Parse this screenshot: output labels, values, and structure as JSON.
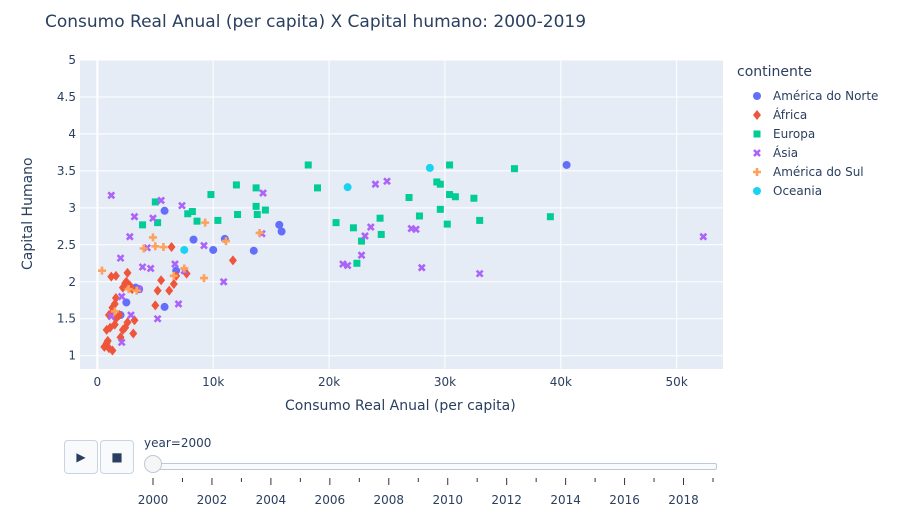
{
  "chart_data": {
    "type": "scatter",
    "title": "Consumo Real Anual (per capita) X Capital humano: 2000-2019",
    "xlabel": "Consumo Real Anual (per capita)",
    "ylabel": "Capital Humano",
    "xlim": [
      -1500,
      54000
    ],
    "ylim": [
      0.82,
      5
    ],
    "xticks": [
      0,
      10000,
      20000,
      30000,
      40000,
      50000
    ],
    "xtick_labels": [
      "0",
      "10k",
      "20k",
      "30k",
      "40k",
      "50k"
    ],
    "yticks": [
      1,
      1.5,
      2,
      2.5,
      3,
      3.5,
      4,
      4.5,
      5
    ],
    "ytick_labels": [
      "1",
      "1.5",
      "2",
      "2.5",
      "3",
      "3.5",
      "4",
      "4.5",
      "5"
    ],
    "legend_title": "continente",
    "series": [
      {
        "name": "América do Norte",
        "color": "#636efa",
        "symbol": "circle",
        "points": [
          [
            40500,
            3.58
          ],
          [
            15700,
            2.77
          ],
          [
            15900,
            2.68
          ],
          [
            13500,
            2.42
          ],
          [
            11000,
            2.58
          ],
          [
            10000,
            2.43
          ],
          [
            8300,
            2.57
          ],
          [
            5800,
            2.96
          ],
          [
            5800,
            1.66
          ],
          [
            3600,
            1.9
          ],
          [
            3300,
            1.92
          ],
          [
            2500,
            1.72
          ],
          [
            2000,
            1.55
          ],
          [
            6800,
            2.15
          ]
        ]
      },
      {
        "name": "África",
        "color": "#ef553b",
        "symbol": "diamond",
        "points": [
          [
            600,
            1.12
          ],
          [
            800,
            1.17
          ],
          [
            900,
            1.2
          ],
          [
            1000,
            1.1
          ],
          [
            1300,
            1.07
          ],
          [
            800,
            1.35
          ],
          [
            1100,
            1.38
          ],
          [
            1500,
            1.42
          ],
          [
            1600,
            1.5
          ],
          [
            1900,
            1.55
          ],
          [
            2200,
            1.35
          ],
          [
            2400,
            1.38
          ],
          [
            2600,
            1.45
          ],
          [
            1000,
            1.55
          ],
          [
            1200,
            1.57
          ],
          [
            1300,
            1.65
          ],
          [
            1500,
            1.7
          ],
          [
            1600,
            1.78
          ],
          [
            2200,
            1.92
          ],
          [
            2400,
            1.98
          ],
          [
            2500,
            2.0
          ],
          [
            3100,
            1.3
          ],
          [
            3200,
            1.48
          ],
          [
            1200,
            2.07
          ],
          [
            1600,
            2.08
          ],
          [
            2600,
            2.12
          ],
          [
            2800,
            1.95
          ],
          [
            3000,
            1.9
          ],
          [
            5000,
            1.68
          ],
          [
            5200,
            1.88
          ],
          [
            5500,
            2.02
          ],
          [
            6200,
            1.88
          ],
          [
            6600,
            1.97
          ],
          [
            6800,
            2.08
          ],
          [
            6400,
            2.47
          ],
          [
            7700,
            2.11
          ],
          [
            11700,
            2.29
          ],
          [
            2000,
            1.25
          ]
        ]
      },
      {
        "name": "Europa",
        "color": "#00cc96",
        "symbol": "square",
        "points": [
          [
            18200,
            3.58
          ],
          [
            19000,
            3.27
          ],
          [
            20600,
            2.8
          ],
          [
            22100,
            2.73
          ],
          [
            22400,
            2.25
          ],
          [
            22800,
            2.55
          ],
          [
            24400,
            2.86
          ],
          [
            24500,
            2.64
          ],
          [
            26900,
            3.14
          ],
          [
            27800,
            2.89
          ],
          [
            29300,
            3.35
          ],
          [
            29600,
            2.98
          ],
          [
            29600,
            3.32
          ],
          [
            30200,
            2.78
          ],
          [
            30400,
            3.58
          ],
          [
            30400,
            3.18
          ],
          [
            30900,
            3.15
          ],
          [
            32500,
            3.13
          ],
          [
            33000,
            2.83
          ],
          [
            36000,
            3.53
          ],
          [
            39100,
            2.88
          ],
          [
            14500,
            2.97
          ],
          [
            13700,
            3.27
          ],
          [
            13700,
            3.02
          ],
          [
            13800,
            2.91
          ],
          [
            12000,
            3.31
          ],
          [
            12100,
            2.91
          ],
          [
            10400,
            2.83
          ],
          [
            9800,
            3.18
          ],
          [
            8200,
            2.95
          ],
          [
            7800,
            2.92
          ],
          [
            8600,
            2.82
          ],
          [
            5000,
            3.08
          ],
          [
            5200,
            2.8
          ],
          [
            3900,
            2.77
          ]
        ]
      },
      {
        "name": "Ásia",
        "color": "#ab63fa",
        "symbol": "x",
        "points": [
          [
            52300,
            2.61
          ],
          [
            33000,
            2.11
          ],
          [
            28000,
            2.19
          ],
          [
            27100,
            2.72
          ],
          [
            27500,
            2.71
          ],
          [
            25000,
            3.36
          ],
          [
            24000,
            3.32
          ],
          [
            23600,
            2.74
          ],
          [
            23100,
            2.62
          ],
          [
            22800,
            2.36
          ],
          [
            21600,
            2.22
          ],
          [
            21200,
            2.24
          ],
          [
            14300,
            3.2
          ],
          [
            14200,
            2.65
          ],
          [
            10900,
            2.0
          ],
          [
            9200,
            2.49
          ],
          [
            7300,
            3.03
          ],
          [
            5500,
            3.1
          ],
          [
            4800,
            2.86
          ],
          [
            3200,
            2.88
          ],
          [
            2800,
            2.61
          ],
          [
            1200,
            3.17
          ],
          [
            2000,
            2.32
          ],
          [
            2100,
            1.8
          ],
          [
            2100,
            1.18
          ],
          [
            1200,
            1.53
          ],
          [
            3600,
            1.9
          ],
          [
            3900,
            2.2
          ],
          [
            4600,
            2.18
          ],
          [
            6700,
            2.24
          ],
          [
            7000,
            1.7
          ],
          [
            5200,
            1.5
          ],
          [
            2900,
            1.55
          ],
          [
            4300,
            2.46
          ],
          [
            7500,
            2.15
          ]
        ]
      },
      {
        "name": "América do Sul",
        "color": "#ffa15a",
        "symbol": "cross",
        "points": [
          [
            400,
            2.15
          ],
          [
            4000,
            2.45
          ],
          [
            4800,
            2.6
          ],
          [
            5000,
            2.48
          ],
          [
            5700,
            2.47
          ],
          [
            6600,
            2.08
          ],
          [
            7500,
            2.18
          ],
          [
            9200,
            2.05
          ],
          [
            9300,
            2.8
          ],
          [
            11100,
            2.55
          ],
          [
            14000,
            2.66
          ],
          [
            2700,
            1.9
          ],
          [
            3400,
            1.88
          ],
          [
            1500,
            1.6
          ]
        ]
      },
      {
        "name": "Oceania",
        "color": "#19d3f3",
        "symbol": "circle",
        "points": [
          [
            21600,
            3.28
          ],
          [
            28700,
            3.54
          ],
          [
            7500,
            2.43
          ]
        ]
      }
    ]
  },
  "animation": {
    "slider_label": "year=2000",
    "play_label": "▶",
    "stop_label": "■",
    "current_year": 2000,
    "year_range": [
      2000,
      2019
    ],
    "tick_labels": [
      "2000",
      "2002",
      "2004",
      "2006",
      "2008",
      "2010",
      "2012",
      "2014",
      "2016",
      "2018"
    ]
  }
}
